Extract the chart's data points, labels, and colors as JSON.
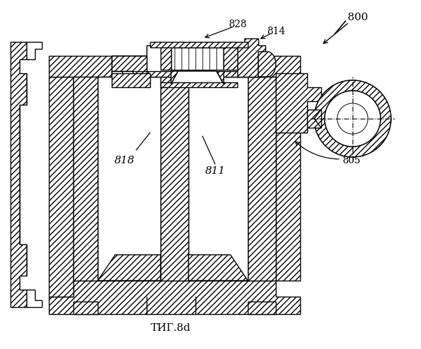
{
  "title": "ΤИГ.8d",
  "label_800": "800",
  "label_828": "828",
  "label_814": "814",
  "label_818": "818",
  "label_811": "811",
  "label_805": "805",
  "bg_color": "#ffffff",
  "line_color": "#000000",
  "figsize": [
    6.03,
    5.0
  ],
  "dpi": 100
}
